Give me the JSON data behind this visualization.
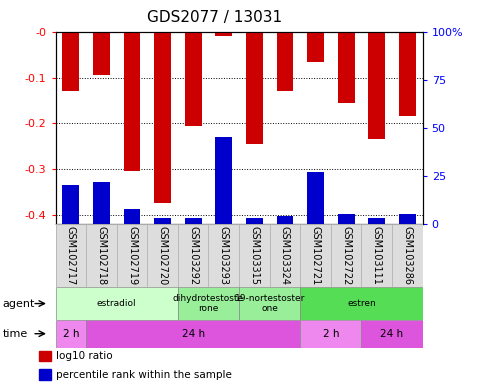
{
  "title": "GDS2077 / 13031",
  "samples": [
    "GSM102717",
    "GSM102718",
    "GSM102719",
    "GSM102720",
    "GSM103292",
    "GSM103293",
    "GSM103315",
    "GSM103324",
    "GSM102721",
    "GSM102722",
    "GSM103111",
    "GSM103286"
  ],
  "log10_ratio": [
    -0.13,
    -0.095,
    -0.305,
    -0.375,
    -0.205,
    -0.008,
    -0.245,
    -0.13,
    -0.065,
    -0.155,
    -0.235,
    -0.185
  ],
  "percentile_rank": [
    20,
    22,
    8,
    3,
    3,
    45,
    3,
    4,
    27,
    5,
    3,
    5
  ],
  "ylim_min": -0.42,
  "ylim_max": 0.0,
  "yticks": [
    0.0,
    -0.1,
    -0.2,
    -0.3,
    -0.4
  ],
  "ytick_labels": [
    "-0",
    "-0.1",
    "-0.2",
    "-0.3",
    "-0.4"
  ],
  "y2lim_min": 0,
  "y2lim_max": 100,
  "y2ticks": [
    0,
    25,
    50,
    75,
    100
  ],
  "y2tick_labels": [
    "0",
    "25",
    "50",
    "75",
    "100%"
  ],
  "bar_color": "#cc0000",
  "pct_color": "#0000cc",
  "grid_color": "#000000",
  "agents": [
    {
      "label": "estradiol",
      "start": 0,
      "end": 4,
      "color": "#ccffcc"
    },
    {
      "label": "dihydrotestoste\nrone",
      "start": 4,
      "end": 6,
      "color": "#99ee99"
    },
    {
      "label": "19-nortestoster\none",
      "start": 6,
      "end": 8,
      "color": "#99ee99"
    },
    {
      "label": "estren",
      "start": 8,
      "end": 12,
      "color": "#55dd55"
    }
  ],
  "times": [
    {
      "label": "2 h",
      "start": 0,
      "end": 1,
      "color": "#ee88ee"
    },
    {
      "label": "24 h",
      "start": 1,
      "end": 8,
      "color": "#dd55dd"
    },
    {
      "label": "2 h",
      "start": 8,
      "end": 10,
      "color": "#ee88ee"
    },
    {
      "label": "24 h",
      "start": 10,
      "end": 12,
      "color": "#dd55dd"
    }
  ],
  "legend_items": [
    {
      "label": "log10 ratio",
      "color": "#cc0000"
    },
    {
      "label": "percentile rank within the sample",
      "color": "#0000cc"
    }
  ],
  "bar_width": 0.55,
  "title_fontsize": 11,
  "tick_fontsize": 8,
  "label_fontsize": 8,
  "sample_fontsize": 7,
  "annotation_fontsize": 7
}
